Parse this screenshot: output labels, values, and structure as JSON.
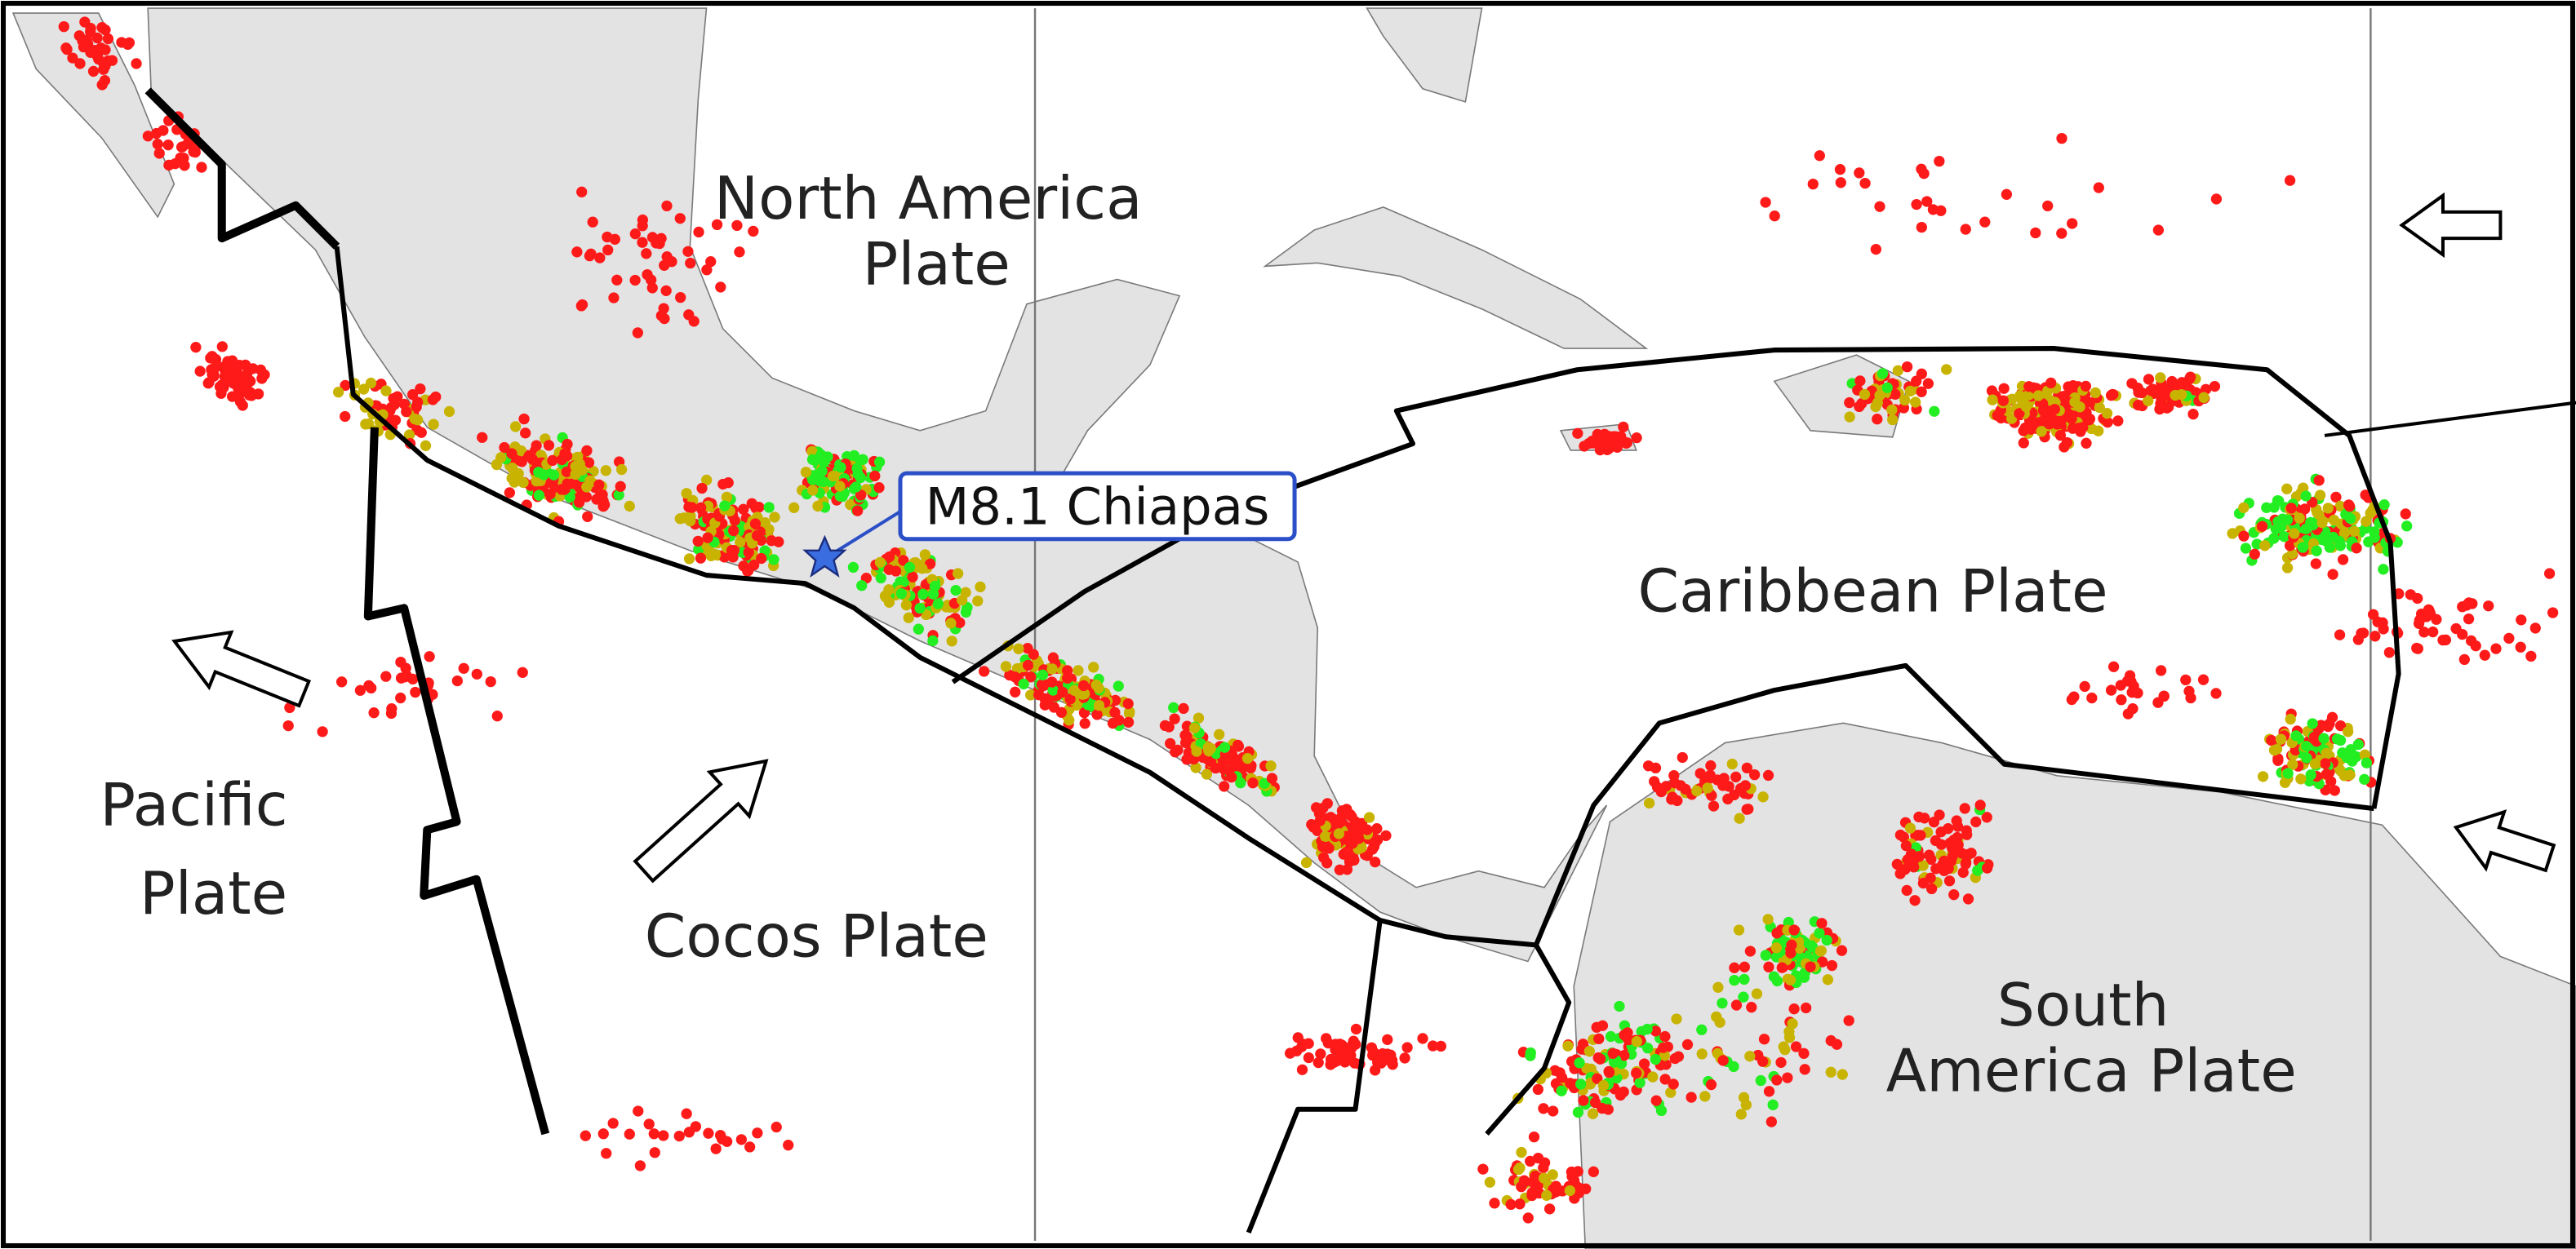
{
  "plates": [
    {
      "lines": [
        "North America",
        "Plate"
      ]
    },
    {
      "lines": [
        "Caribbean Plate"
      ]
    },
    {
      "lines": [
        "Pacific",
        "Plate"
      ]
    },
    {
      "lines": [
        "Cocos Plate"
      ]
    },
    {
      "lines": [
        "South",
        "America Plate"
      ]
    }
  ],
  "annotation": "M8.1 Chiapas"
}
